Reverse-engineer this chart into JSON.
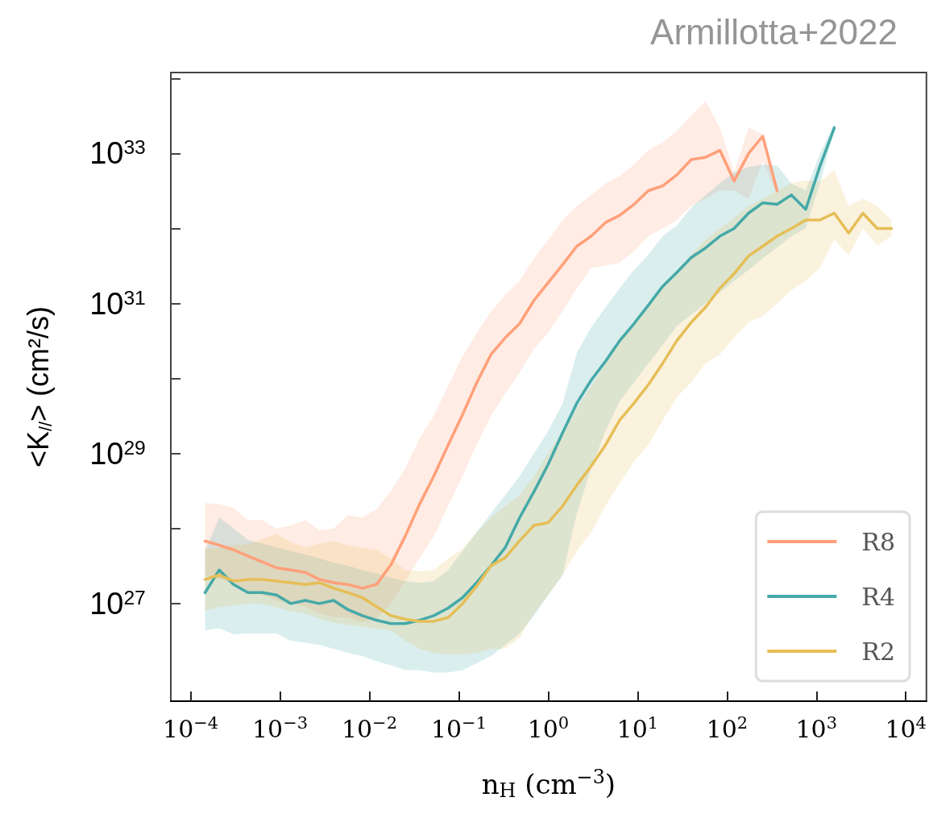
{
  "chart_data": {
    "type": "line",
    "title": "Armillotta+2022",
    "xlabel": "n$_{H}$ (cm$^{−3}$)",
    "ylabel": "<K$_{//}$> (cm²/s)",
    "log": "xy",
    "grid": false,
    "legend": "bottom right",
    "marker": "none",
    "line_style": "solid",
    "xlim": [
      6e-05,
      17000.0
    ],
    "ylim": [
      5e+25,
      1.2e+34
    ],
    "xticks": [
      {
        "value": 0.0001,
        "label": "10$^{−4}$"
      },
      {
        "value": 0.001,
        "label": "10$^{−3}$"
      },
      {
        "value": 0.01,
        "label": "10$^{−2}$"
      },
      {
        "value": 0.1,
        "label": "10$^{−1}$"
      },
      {
        "value": 1,
        "label": "10$^{0}$"
      },
      {
        "value": 10,
        "label": "10$^{1}$"
      },
      {
        "value": 100,
        "label": "10$^{2}$"
      },
      {
        "value": 1000,
        "label": "10$^{3}$"
      },
      {
        "value": 10000,
        "label": "10$^{4}$"
      }
    ],
    "yticks": [
      {
        "value": 1e+27,
        "label": "10$^{27}$"
      },
      {
        "value": 1e+28,
        "label": null
      },
      {
        "value": 1e+29,
        "label": "10$^{29}$"
      },
      {
        "value": 1e+30,
        "label": null
      },
      {
        "value": 1e+31,
        "label": "10$^{31}$"
      },
      {
        "value": 1e+32,
        "label": null
      },
      {
        "value": 1e+33,
        "label": "10$^{33}$"
      },
      {
        "value": 1e+34,
        "label": null
      }
    ],
    "x": [
      0.000145,
      0.000209,
      0.000302,
      0.000437,
      0.000631,
      0.000912,
      0.00132,
      0.00191,
      0.00275,
      0.00398,
      0.00575,
      0.00832,
      0.012,
      0.0174,
      0.0251,
      0.0363,
      0.0525,
      0.0759,
      0.11,
      0.158,
      0.229,
      0.331,
      0.479,
      0.692,
      1,
      1.45,
      2.09,
      3.02,
      4.37,
      6.31,
      9.12,
      13.2,
      19.1,
      27.5,
      39.8,
      57.5,
      83.2,
      120,
      174,
      251,
      363,
      525,
      759,
      1096,
      1585,
      2291,
      3311,
      4786,
      6918
    ],
    "series": [
      {
        "name": "R8",
        "color": "#ffa07a",
        "values": [
          6.8e+27,
          6e+27,
          5.2e+27,
          4.3e+27,
          3.6e+27,
          3e+27,
          2.8e+27,
          2.6e+27,
          2.1e+27,
          1.9e+27,
          1.8e+27,
          1.6e+27,
          1.8e+27,
          3.3e+27,
          7.9e+27,
          2.1e+28,
          5e+28,
          1.3e+29,
          3.3e+29,
          8.7e+29,
          2.1e+30,
          3.5e+30,
          5.4e+30,
          1.1e+31,
          1.9e+31,
          3.3e+31,
          5.8e+31,
          7.9e+31,
          1.2e+32,
          1.5e+32,
          2.1e+32,
          3.2e+32,
          3.7e+32,
          5.2e+32,
          8.3e+32,
          8.9e+32,
          1.1e+33,
          4.3e+32,
          1e+33,
          1.7e+33,
          3.2e+32,
          null,
          null,
          null,
          null,
          null,
          null,
          null,
          null
        ],
        "upper": [
          2.2e+28,
          2.1e+28,
          1.9e+28,
          1.3e+28,
          1.3e+28,
          1e+28,
          1.1e+28,
          1.3e+28,
          9.5e+27,
          1e+28,
          1.5e+28,
          1.4e+28,
          1.8e+28,
          3.2e+28,
          6.3e+28,
          1.6e+29,
          3.2e+29,
          7.9e+29,
          2e+30,
          4e+30,
          7.9e+30,
          1.3e+31,
          2e+31,
          4e+31,
          7.1e+31,
          1.3e+32,
          2e+32,
          2.8e+32,
          4e+32,
          5e+32,
          7.1e+32,
          1.1e+33,
          1.4e+33,
          2e+33,
          3.2e+33,
          5e+33,
          2.2e+33,
          5.6e+32,
          2.2e+33,
          1.8e+33,
          3.5e+32,
          null,
          null,
          null,
          null,
          null,
          null,
          null,
          null
        ],
        "lower": [
          2.4e+27,
          2.1e+27,
          1.9e+27,
          1.5e+27,
          1.3e+27,
          1.1e+27,
          1e+27,
          9.1e+26,
          7.4e+26,
          6.6e+26,
          6.5e+26,
          5.6e+26,
          6.3e+26,
          1e+27,
          2e+27,
          4e+27,
          7.9e+27,
          2e+28,
          5e+28,
          1.3e+29,
          3.2e+29,
          6.3e+29,
          1.2e+30,
          2.5e+30,
          4.1e+30,
          7.9e+30,
          1.6e+31,
          3e+31,
          3.2e+31,
          3.5e+31,
          5e+31,
          7.9e+31,
          1e+32,
          1.3e+32,
          2e+32,
          2.5e+32,
          3.2e+32,
          3.2e+32,
          2.5e+32,
          7.9e+32,
          2.8e+32,
          null,
          null,
          null,
          null,
          null,
          null,
          null,
          null
        ]
      },
      {
        "name": "R4",
        "color": "#45a9a8",
        "values": [
          1.4e+27,
          2.8e+27,
          1.8e+27,
          1.4e+27,
          1.4e+27,
          1.3e+27,
          1e+27,
          1.1e+27,
          1e+27,
          1.1e+27,
          8.3e+26,
          6.9e+26,
          6e+26,
          5.4e+26,
          5.4e+26,
          6e+26,
          6.9e+26,
          8.7e+26,
          1.2e+27,
          1.9e+27,
          3.2e+27,
          5.6e+27,
          1.4e+28,
          3.1e+28,
          7.2e+28,
          1.9e+29,
          4.7e+29,
          9.5e+29,
          1.7e+30,
          3.2e+30,
          5.4e+30,
          9.5e+30,
          1.7e+31,
          2.6e+31,
          4.1e+31,
          5.5e+31,
          7.9e+31,
          1e+32,
          1.6e+32,
          2.2e+32,
          2.1e+32,
          2.8e+32,
          1.8e+32,
          6.8e+32,
          2.2e+33,
          null,
          null,
          null,
          null
        ],
        "upper": [
          5.1e+27,
          1.4e+28,
          1e+28,
          7.1e+27,
          6.3e+27,
          5.6e+27,
          5e+27,
          4.5e+27,
          4e+27,
          3.5e+27,
          3.2e+27,
          2.8e+27,
          2.5e+27,
          2.2e+27,
          2e+27,
          1.9e+27,
          2e+27,
          2.8e+27,
          5e+27,
          8.9e+27,
          1.6e+28,
          2.8e+28,
          5e+28,
          1e+29,
          2e+29,
          4.7e+29,
          2.2e+30,
          4.8e+30,
          8.9e+30,
          1.6e+31,
          2.8e+31,
          4.5e+31,
          7.9e+31,
          1.1e+32,
          1.9e+32,
          2.8e+32,
          4e+32,
          5.6e+32,
          6.6e+32,
          7.1e+32,
          6.9e+32,
          4e+32,
          3.2e+32,
          1e+33,
          2.5e+33,
          null,
          null,
          null,
          null
        ],
        "lower": [
          4.4e+26,
          4.7e+26,
          3.9e+26,
          4e+26,
          4e+26,
          4e+26,
          3.2e+26,
          3e+26,
          2.8e+26,
          2.5e+26,
          2.2e+26,
          2e+26,
          1.7e+26,
          1.5e+26,
          1.3e+26,
          1.3e+26,
          1.2e+26,
          1.2e+26,
          1.3e+26,
          1.6e+26,
          2e+26,
          2.8e+26,
          4e+26,
          6.9e+26,
          1.3e+27,
          2.4e+27,
          1.6e+28,
          6.3e+28,
          2e+29,
          5e+29,
          8.9e+29,
          1.6e+30,
          2.8e+30,
          5e+30,
          7.1e+30,
          1e+31,
          1.4e+31,
          2e+31,
          2.8e+31,
          4e+31,
          5.6e+31,
          7.9e+31,
          1e+32,
          4e+32,
          2e+33,
          null,
          null,
          null,
          null
        ]
      },
      {
        "name": "R2",
        "color": "#e6be57",
        "values": [
          2.1e+27,
          2.4e+27,
          2e+27,
          2.1e+27,
          2.1e+27,
          2e+27,
          1.9e+27,
          1.8e+27,
          1.9e+27,
          1.6e+27,
          1.4e+27,
          1.2e+27,
          9.1e+26,
          6.9e+26,
          6.2e+26,
          5.8e+26,
          5.8e+26,
          6.5e+26,
          1e+27,
          1.7e+27,
          3.2e+27,
          4.1e+27,
          6.9e+27,
          1.1e+28,
          1.2e+28,
          2e+28,
          3.8e+28,
          6.8e+28,
          1.3e+29,
          2.8e+29,
          4.7e+29,
          8.3e+29,
          1.6e+30,
          3.2e+30,
          5.6e+30,
          8.9e+30,
          1.6e+31,
          2.5e+31,
          4.3e+31,
          5.8e+31,
          7.9e+31,
          1e+32,
          1.3e+32,
          1.3e+32,
          1.6e+32,
          8.7e+31,
          1.6e+32,
          1e+32,
          1e+32
        ],
        "upper": [
          5.2e+27,
          5.6e+27,
          6e+27,
          6.2e+27,
          7.2e+27,
          8.5e+27,
          6.6e+27,
          5.6e+27,
          6.3e+27,
          6.8e+27,
          6e+27,
          5.5e+27,
          5.2e+27,
          4e+27,
          2.8e+27,
          2.7e+27,
          2.8e+27,
          4e+27,
          5.4e+27,
          8.9e+27,
          1.4e+28,
          2e+28,
          2.8e+28,
          5e+28,
          1e+29,
          2e+29,
          4e+29,
          7.9e+29,
          1.6e+30,
          3.2e+30,
          5.6e+30,
          1e+31,
          1.8e+31,
          2.8e+31,
          4.5e+31,
          7.1e+31,
          1e+32,
          1.4e+32,
          2e+32,
          2.5e+32,
          3.2e+32,
          4e+32,
          4.4e+32,
          4.2e+32,
          6e+32,
          2e+32,
          2.5e+32,
          2e+32,
          1.3e+32
        ],
        "lower": [
          8.1e+26,
          8.9e+26,
          9.5e+26,
          1e+27,
          1e+27,
          8.9e+26,
          7.9e+26,
          7.4e+26,
          6.3e+26,
          5.6e+26,
          5.2e+26,
          4.9e+26,
          4.6e+26,
          4.4e+26,
          3.2e+26,
          2.5e+26,
          2.2e+26,
          2.1e+26,
          2.1e+26,
          2.2e+26,
          2.5e+26,
          2.5e+26,
          3.5e+26,
          7.4e+26,
          1.3e+27,
          2.4e+27,
          5e+27,
          8.9e+27,
          2e+28,
          4e+28,
          7.9e+28,
          1.3e+29,
          2.8e+29,
          5.6e+29,
          8.9e+29,
          1.6e+30,
          2.1e+30,
          3.5e+30,
          5.6e+30,
          6.8e+30,
          1e+31,
          1.5e+31,
          2e+31,
          3e+31,
          7.1e+31,
          4.4e+31,
          1e+32,
          5.9e+31,
          7.9e+31
        ]
      }
    ]
  }
}
